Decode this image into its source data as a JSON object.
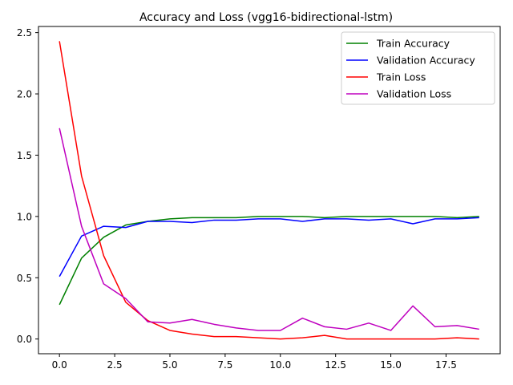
{
  "chart_data": {
    "type": "line",
    "title": "Accuracy and Loss (vgg16-bidirectional-lstm)",
    "xlabel": "",
    "ylabel": "",
    "xlim": [
      -0.95,
      19.95
    ],
    "ylim": [
      -0.12,
      2.55
    ],
    "xticks": [
      0.0,
      2.5,
      5.0,
      7.5,
      10.0,
      12.5,
      15.0,
      17.5
    ],
    "xtick_labels": [
      "0.0",
      "2.5",
      "5.0",
      "7.5",
      "10.0",
      "12.5",
      "15.0",
      "17.5"
    ],
    "yticks": [
      0.0,
      0.5,
      1.0,
      1.5,
      2.0,
      2.5
    ],
    "ytick_labels": [
      "0.0",
      "0.5",
      "1.0",
      "1.5",
      "2.0",
      "2.5"
    ],
    "grid": false,
    "legend_position": "top-right",
    "x": [
      0,
      1,
      2,
      3,
      4,
      5,
      6,
      7,
      8,
      9,
      10,
      11,
      12,
      13,
      14,
      15,
      16,
      17,
      18,
      19
    ],
    "series": [
      {
        "name": "Train Accuracy",
        "color": "#008000",
        "values": [
          0.28,
          0.66,
          0.83,
          0.93,
          0.96,
          0.98,
          0.99,
          0.99,
          0.99,
          1.0,
          1.0,
          1.0,
          0.99,
          1.0,
          1.0,
          1.0,
          1.0,
          1.0,
          0.99,
          1.0
        ]
      },
      {
        "name": "Validation Accuracy",
        "color": "#0000ff",
        "values": [
          0.51,
          0.84,
          0.92,
          0.91,
          0.96,
          0.96,
          0.95,
          0.97,
          0.97,
          0.98,
          0.98,
          0.96,
          0.98,
          0.98,
          0.97,
          0.98,
          0.94,
          0.98,
          0.98,
          0.99
        ]
      },
      {
        "name": "Train Loss",
        "color": "#ff0000",
        "values": [
          2.43,
          1.33,
          0.68,
          0.3,
          0.15,
          0.07,
          0.04,
          0.02,
          0.02,
          0.01,
          0.0,
          0.01,
          0.03,
          0.0,
          0.0,
          0.0,
          0.0,
          0.0,
          0.01,
          0.0
        ]
      },
      {
        "name": "Validation Loss",
        "color": "#bf00bf",
        "values": [
          1.72,
          0.92,
          0.45,
          0.33,
          0.14,
          0.13,
          0.16,
          0.12,
          0.09,
          0.07,
          0.07,
          0.17,
          0.1,
          0.08,
          0.13,
          0.07,
          0.27,
          0.1,
          0.11,
          0.08
        ]
      }
    ]
  }
}
